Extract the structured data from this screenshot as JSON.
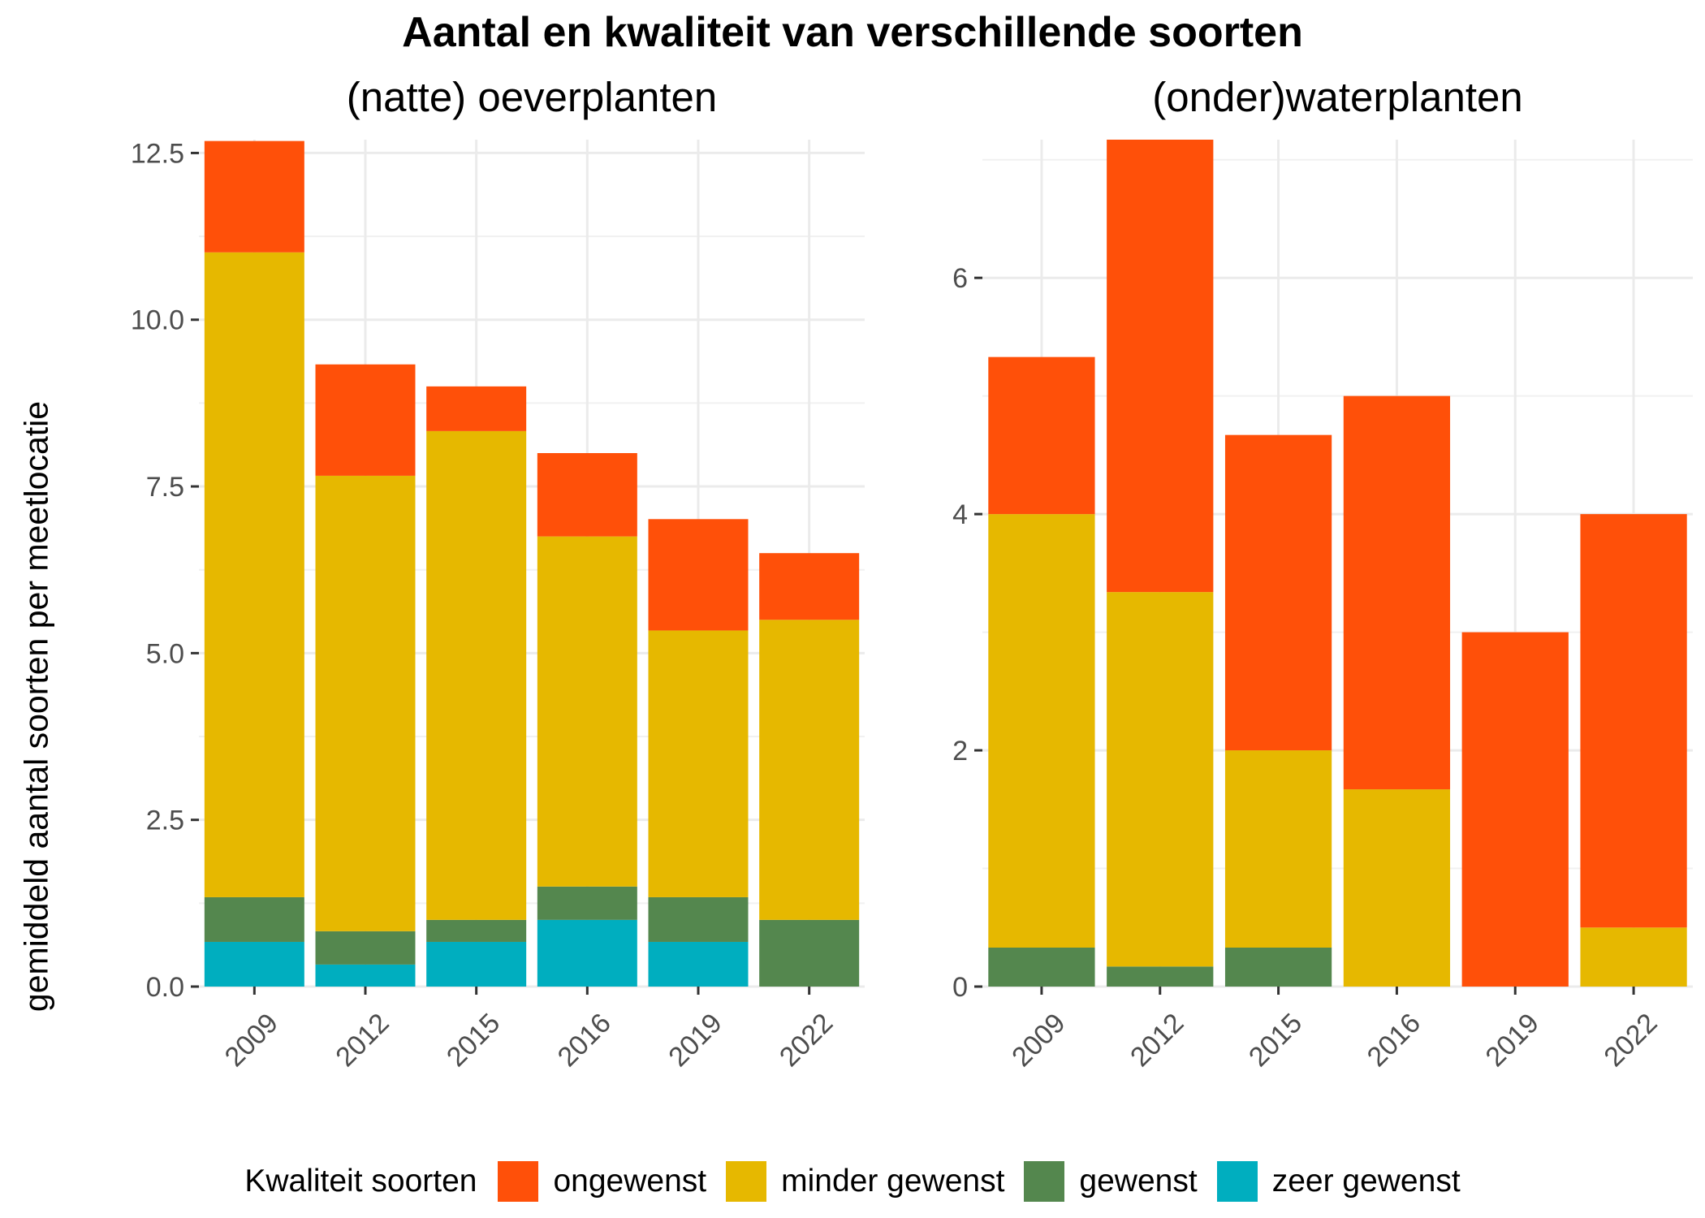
{
  "title": "Aantal en kwaliteit van verschillende soorten",
  "ylabel": "gemiddeld aantal soorten per meetlocatie",
  "legend": {
    "title": "Kwaliteit soorten",
    "items": [
      {
        "label": "ongewenst",
        "color": "#FF5009"
      },
      {
        "label": "minder gewenst",
        "color": "#E6B800"
      },
      {
        "label": "gewenst",
        "color": "#54874E"
      },
      {
        "label": "zeer gewenst",
        "color": "#00AEBF"
      }
    ]
  },
  "chart_data": [
    {
      "type": "bar",
      "stacked": true,
      "title": "(natte) oeverplanten",
      "categories": [
        "2009",
        "2012",
        "2015",
        "2016",
        "2019",
        "2022"
      ],
      "ylim": [
        0,
        12.7
      ],
      "yticks": [
        0,
        2.5,
        5,
        7.5,
        10,
        12.5
      ],
      "ytick_labels": [
        "0.0",
        "2.5",
        "5.0",
        "7.5",
        "10.0",
        "12.5"
      ],
      "series": [
        {
          "name": "zeer gewenst",
          "values": [
            0.67,
            0.33,
            0.67,
            1.0,
            0.67,
            0
          ]
        },
        {
          "name": "gewenst",
          "values": [
            0.67,
            0.5,
            0.33,
            0.5,
            0.67,
            1.0
          ]
        },
        {
          "name": "minder gewenst",
          "values": [
            9.67,
            6.83,
            7.33,
            5.25,
            4.0,
            4.5
          ]
        },
        {
          "name": "ongewenst",
          "values": [
            1.67,
            1.67,
            0.67,
            1.25,
            1.67,
            1.0
          ]
        }
      ]
    },
    {
      "type": "bar",
      "stacked": true,
      "title": "(onder)waterplanten",
      "categories": [
        "2009",
        "2012",
        "2015",
        "2016",
        "2019",
        "2022"
      ],
      "ylim": [
        0,
        7.17
      ],
      "yticks": [
        0,
        2,
        4,
        6
      ],
      "ytick_labels": [
        "0",
        "2",
        "4",
        "6"
      ],
      "series": [
        {
          "name": "zeer gewenst",
          "values": [
            0,
            0,
            0,
            0,
            0,
            0
          ]
        },
        {
          "name": "gewenst",
          "values": [
            0.33,
            0.17,
            0.33,
            0,
            0,
            0
          ]
        },
        {
          "name": "minder gewenst",
          "values": [
            3.67,
            3.17,
            1.67,
            1.67,
            0,
            0.5
          ]
        },
        {
          "name": "ongewenst",
          "values": [
            1.33,
            3.83,
            2.67,
            3.33,
            3.0,
            3.5
          ]
        }
      ]
    }
  ]
}
